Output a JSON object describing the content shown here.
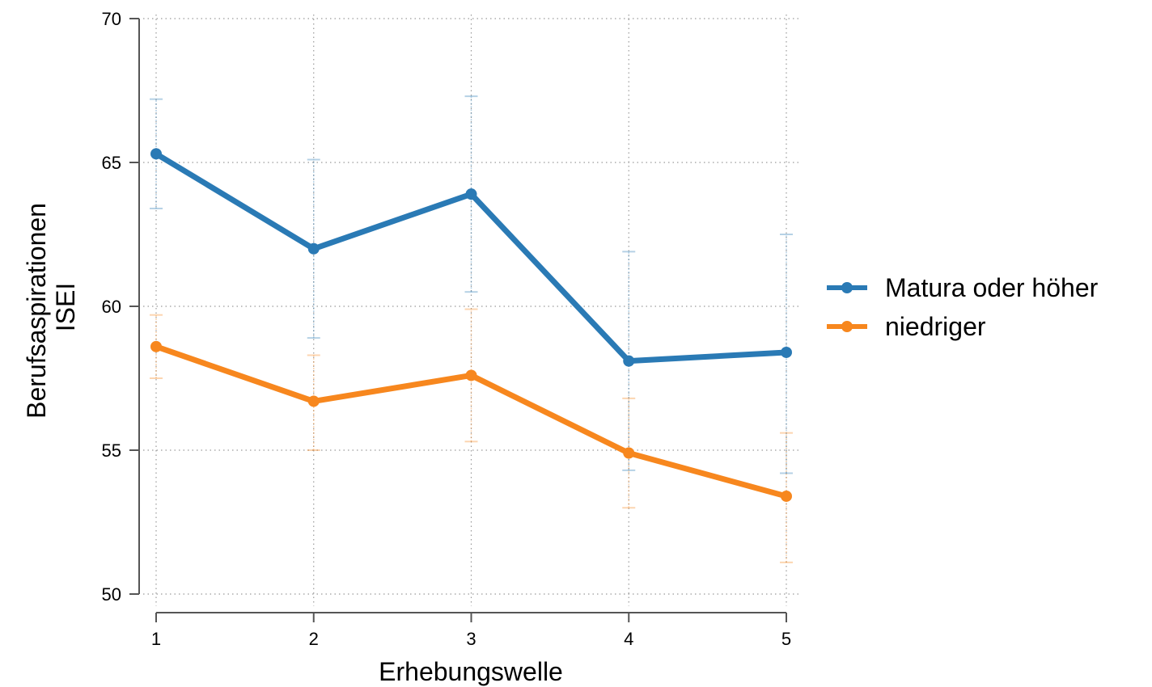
{
  "chart_data": {
    "type": "line",
    "title": "",
    "xlabel": "Erhebungswelle",
    "ylabel_lines": [
      "Berufsaspirationen",
      "ISEI"
    ],
    "x": [
      1,
      2,
      3,
      4,
      5
    ],
    "x_tick_labels": [
      "1",
      "2",
      "3",
      "4",
      "5"
    ],
    "ylim": [
      50,
      70
    ],
    "y_ticks": [
      50,
      55,
      60,
      65,
      70
    ],
    "y_tick_labels": [
      "50",
      "55",
      "60",
      "65",
      "70"
    ],
    "grid": true,
    "legend_position": "right",
    "series": [
      {
        "name": "Matura oder höher",
        "color": "#2a7ab5",
        "values": [
          65.3,
          62.0,
          63.9,
          58.1,
          58.4
        ],
        "ci_low": [
          63.4,
          58.9,
          60.5,
          54.3,
          54.2
        ],
        "ci_high": [
          67.2,
          65.1,
          67.3,
          61.9,
          62.5
        ]
      },
      {
        "name": "niedriger",
        "color": "#f7871e",
        "values": [
          58.6,
          56.7,
          57.6,
          54.9,
          53.4
        ],
        "ci_low": [
          57.5,
          55.0,
          55.3,
          53.0,
          51.1
        ],
        "ci_high": [
          59.7,
          58.3,
          59.9,
          56.8,
          55.6
        ]
      }
    ]
  }
}
